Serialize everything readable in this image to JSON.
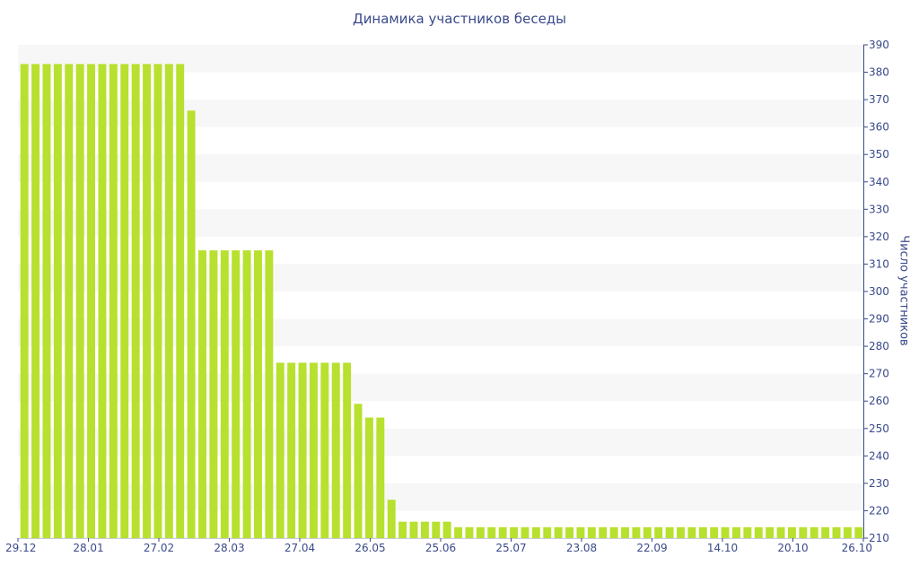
{
  "chart_data": {
    "type": "bar",
    "title": "Динамика участников беседы",
    "xlabel": "",
    "ylabel": "Число участников",
    "ylim": [
      210,
      390
    ],
    "yticks": [
      210,
      220,
      230,
      240,
      250,
      260,
      270,
      280,
      290,
      300,
      310,
      320,
      330,
      340,
      350,
      360,
      370,
      380,
      390
    ],
    "x_tick_labels": [
      "29.12",
      "28.01",
      "27.02",
      "28.03",
      "27.04",
      "26.05",
      "25.06",
      "25.07",
      "23.08",
      "22.09",
      "14.10",
      "20.10",
      "26.10"
    ],
    "values": [
      383,
      383,
      383,
      383,
      383,
      383,
      383,
      383,
      383,
      383,
      383,
      383,
      383,
      383,
      383,
      366,
      315,
      315,
      315,
      315,
      315,
      315,
      315,
      274,
      274,
      274,
      274,
      274,
      274,
      274,
      259,
      254,
      254,
      224,
      216,
      216,
      216,
      216,
      216,
      214,
      214,
      214,
      214,
      214,
      214,
      214,
      214,
      214,
      214,
      214,
      214,
      214,
      214,
      214,
      214,
      214,
      214,
      214,
      214,
      214,
      214,
      214,
      214,
      214,
      214,
      214,
      214,
      214,
      214,
      214,
      214,
      214,
      214,
      214,
      214,
      214
    ],
    "bar_color": "#b8e02e",
    "grid": true,
    "grid_band_color": "#f7f7f7",
    "axis_color": "#3a4a8a"
  }
}
